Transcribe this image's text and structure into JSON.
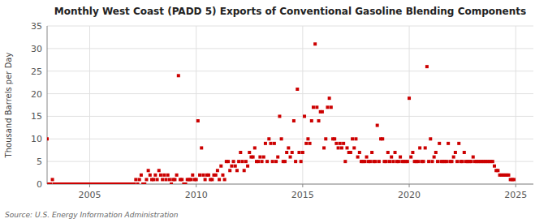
{
  "chart_data": {
    "type": "scatter",
    "title": "Monthly West Coast (PADD 5) Exports of Conventional Gasoline Blending Components",
    "y_label": "Thousand Barrels per Day",
    "source": "Source: U.S. Energy Information Administration",
    "color": "#cc0000",
    "marker": "square",
    "grid": true,
    "xlim": [
      2003.0,
      2025.83
    ],
    "ylim": [
      0,
      35
    ],
    "xticks": [
      2005,
      2010,
      2015,
      2020,
      2025
    ],
    "yticks": [
      0,
      5,
      10,
      15,
      20,
      25,
      30,
      35
    ],
    "x": [
      2003.0,
      2003.083,
      2003.167,
      2003.25,
      2003.333,
      2003.417,
      2003.5,
      2003.583,
      2003.667,
      2003.75,
      2003.833,
      2003.917,
      2004.0,
      2004.083,
      2004.167,
      2004.25,
      2004.333,
      2004.417,
      2004.5,
      2004.583,
      2004.667,
      2004.75,
      2004.833,
      2004.917,
      2005.0,
      2005.083,
      2005.167,
      2005.25,
      2005.333,
      2005.417,
      2005.5,
      2005.583,
      2005.667,
      2005.75,
      2005.833,
      2005.917,
      2006.0,
      2006.083,
      2006.167,
      2006.25,
      2006.333,
      2006.417,
      2006.5,
      2006.583,
      2006.667,
      2006.75,
      2006.833,
      2006.917,
      2007.0,
      2007.083,
      2007.167,
      2007.25,
      2007.333,
      2007.417,
      2007.5,
      2007.583,
      2007.667,
      2007.75,
      2007.833,
      2007.917,
      2008.0,
      2008.083,
      2008.167,
      2008.25,
      2008.333,
      2008.417,
      2008.5,
      2008.583,
      2008.667,
      2008.75,
      2008.833,
      2008.917,
      2009.0,
      2009.083,
      2009.167,
      2009.25,
      2009.333,
      2009.417,
      2009.5,
      2009.583,
      2009.667,
      2009.75,
      2009.833,
      2009.917,
      2010.0,
      2010.083,
      2010.167,
      2010.25,
      2010.333,
      2010.417,
      2010.5,
      2010.583,
      2010.667,
      2010.75,
      2010.833,
      2010.917,
      2011.0,
      2011.083,
      2011.167,
      2011.25,
      2011.333,
      2011.417,
      2011.5,
      2011.583,
      2011.667,
      2011.75,
      2011.833,
      2011.917,
      2012.0,
      2012.083,
      2012.167,
      2012.25,
      2012.333,
      2012.417,
      2012.5,
      2012.583,
      2012.667,
      2012.75,
      2012.833,
      2012.917,
      2013.0,
      2013.083,
      2013.167,
      2013.25,
      2013.333,
      2013.417,
      2013.5,
      2013.583,
      2013.667,
      2013.75,
      2013.833,
      2013.917,
      2014.0,
      2014.083,
      2014.167,
      2014.25,
      2014.333,
      2014.417,
      2014.5,
      2014.583,
      2014.667,
      2014.75,
      2014.833,
      2014.917,
      2015.0,
      2015.083,
      2015.167,
      2015.25,
      2015.333,
      2015.417,
      2015.5,
      2015.583,
      2015.667,
      2015.75,
      2015.833,
      2015.917,
      2016.0,
      2016.083,
      2016.167,
      2016.25,
      2016.333,
      2016.417,
      2016.5,
      2016.583,
      2016.667,
      2016.75,
      2016.833,
      2016.917,
      2017.0,
      2017.083,
      2017.167,
      2017.25,
      2017.333,
      2017.417,
      2017.5,
      2017.583,
      2017.667,
      2017.75,
      2017.833,
      2017.917,
      2018.0,
      2018.083,
      2018.167,
      2018.25,
      2018.333,
      2018.417,
      2018.5,
      2018.583,
      2018.667,
      2018.75,
      2018.833,
      2018.917,
      2019.0,
      2019.083,
      2019.167,
      2019.25,
      2019.333,
      2019.417,
      2019.5,
      2019.583,
      2019.667,
      2019.75,
      2019.833,
      2019.917,
      2020.0,
      2020.083,
      2020.167,
      2020.25,
      2020.333,
      2020.417,
      2020.5,
      2020.583,
      2020.667,
      2020.75,
      2020.833,
      2020.917,
      2021.0,
      2021.083,
      2021.167,
      2021.25,
      2021.333,
      2021.417,
      2021.5,
      2021.583,
      2021.667,
      2021.75,
      2021.833,
      2021.917,
      2022.0,
      2022.083,
      2022.167,
      2022.25,
      2022.333,
      2022.417,
      2022.5,
      2022.583,
      2022.667,
      2022.75,
      2022.833,
      2022.917,
      2023.0,
      2023.083,
      2023.167,
      2023.25,
      2023.333,
      2023.417,
      2023.5,
      2023.583,
      2023.667,
      2023.75,
      2023.833,
      2023.917,
      2024.0,
      2024.083,
      2024.167,
      2024.25,
      2024.333,
      2024.417,
      2024.5,
      2024.583,
      2024.667,
      2024.75,
      2024.833,
      2024.917
    ],
    "values": [
      10,
      0,
      0,
      1,
      0,
      0,
      0,
      0,
      0,
      0,
      0,
      0,
      0,
      0,
      0,
      0,
      0,
      0,
      0,
      0,
      0,
      0,
      0,
      0,
      0,
      0,
      0,
      0,
      0,
      0,
      0,
      0,
      0,
      0,
      0,
      0,
      0,
      0,
      0,
      0,
      0,
      0,
      0,
      0,
      0,
      0,
      0,
      0,
      0,
      0,
      1,
      0,
      1,
      2,
      0,
      0,
      1,
      3,
      2,
      1,
      1,
      2,
      1,
      3,
      2,
      1,
      2,
      1,
      2,
      1,
      0,
      1,
      1,
      2,
      24,
      1,
      1,
      0,
      0,
      1,
      1,
      1,
      2,
      1,
      1,
      14,
      2,
      8,
      2,
      1,
      2,
      2,
      1,
      1,
      2,
      2,
      3,
      1,
      4,
      2,
      1,
      5,
      5,
      3,
      4,
      5,
      4,
      3,
      5,
      7,
      5,
      3,
      5,
      4,
      7,
      6,
      6,
      8,
      5,
      5,
      6,
      5,
      6,
      9,
      5,
      10,
      9,
      5,
      9,
      5,
      6,
      15,
      10,
      5,
      5,
      7,
      8,
      6,
      7,
      14,
      5,
      21,
      7,
      5,
      7,
      15,
      9,
      10,
      9,
      14,
      17,
      31,
      17,
      14,
      16,
      16,
      8,
      10,
      17,
      19,
      17,
      10,
      10,
      9,
      8,
      9,
      8,
      9,
      5,
      8,
      7,
      7,
      10,
      8,
      10,
      6,
      7,
      5,
      5,
      5,
      6,
      5,
      5,
      7,
      5,
      5,
      13,
      5,
      10,
      10,
      5,
      5,
      7,
      5,
      6,
      5,
      7,
      5,
      5,
      6,
      5,
      5,
      5,
      5,
      19,
      6,
      7,
      5,
      5,
      5,
      8,
      5,
      5,
      8,
      26,
      5,
      10,
      5,
      6,
      7,
      5,
      9,
      5,
      5,
      5,
      5,
      9,
      5,
      5,
      6,
      7,
      5,
      9,
      5,
      5,
      7,
      5,
      5,
      5,
      5,
      6,
      5,
      5,
      5,
      5,
      5,
      5,
      5,
      5,
      5,
      5,
      5,
      4,
      3,
      3,
      2,
      2,
      2,
      2,
      2,
      2,
      1,
      1,
      1
    ]
  }
}
